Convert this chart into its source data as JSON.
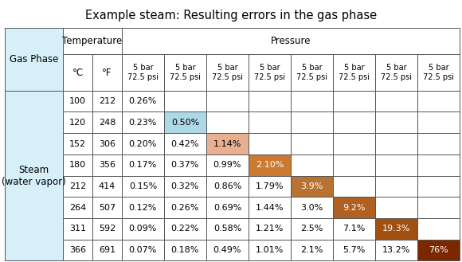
{
  "title": "Example steam: Resulting errors in the gas phase",
  "pressure_label": "5 bar\n72.5 psi",
  "row_label": "Steam\n(water vapor)",
  "temp_C": [
    100,
    120,
    152,
    180,
    212,
    264,
    311,
    366
  ],
  "temp_F": [
    212,
    248,
    306,
    356,
    414,
    507,
    592,
    691
  ],
  "rows": [
    [
      "0.26%",
      "",
      "",
      "",
      "",
      "",
      "",
      ""
    ],
    [
      "0.23%",
      "0.50%",
      "",
      "",
      "",
      "",
      "",
      ""
    ],
    [
      "0.20%",
      "0.42%",
      "1.14%",
      "",
      "",
      "",
      "",
      ""
    ],
    [
      "0.17%",
      "0.37%",
      "0.99%",
      "2.10%",
      "",
      "",
      "",
      ""
    ],
    [
      "0.15%",
      "0.32%",
      "0.86%",
      "1.79%",
      "3.9%",
      "",
      "",
      ""
    ],
    [
      "0.12%",
      "0.26%",
      "0.69%",
      "1.44%",
      "3.0%",
      "9.2%",
      "",
      ""
    ],
    [
      "0.09%",
      "0.22%",
      "0.58%",
      "1.21%",
      "2.5%",
      "7.1%",
      "19.3%",
      ""
    ],
    [
      "0.07%",
      "0.18%",
      "0.49%",
      "1.01%",
      "2.1%",
      "5.7%",
      "13.2%",
      "76%"
    ]
  ],
  "cell_colors": [
    [
      "white",
      "white",
      "white",
      "white",
      "white",
      "white",
      "white",
      "white"
    ],
    [
      "white",
      "#add8e6",
      "white",
      "white",
      "white",
      "white",
      "white",
      "white"
    ],
    [
      "white",
      "white",
      "#e8b090",
      "white",
      "white",
      "white",
      "white",
      "white"
    ],
    [
      "white",
      "white",
      "white",
      "#cc7a30",
      "white",
      "white",
      "white",
      "white"
    ],
    [
      "white",
      "white",
      "white",
      "white",
      "#b87333",
      "white",
      "white",
      "white"
    ],
    [
      "white",
      "white",
      "white",
      "white",
      "white",
      "#b06020",
      "white",
      "white"
    ],
    [
      "white",
      "white",
      "white",
      "white",
      "white",
      "white",
      "#a05010",
      "white"
    ],
    [
      "white",
      "white",
      "white",
      "white",
      "white",
      "white",
      "white",
      "#7B2800"
    ]
  ],
  "light_blue": "#d6eff8",
  "title_fontsize": 10.5,
  "header_fontsize": 8.5,
  "cell_fontsize": 8.0,
  "pressure_fontsize": 7.0
}
